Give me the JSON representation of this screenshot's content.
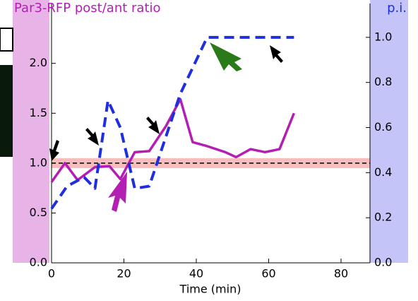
{
  "chart_data": {
    "type": "line",
    "title": "Par3-RFP post/ant ratio",
    "y2_label": "p.i.",
    "x_label": "Time (min)",
    "xlim": [
      0,
      88
    ],
    "xticks": [
      0,
      20,
      40,
      60,
      80
    ],
    "ylim": [
      0,
      2.6
    ],
    "yticks": [
      {
        "value": 0,
        "label": "0.0"
      },
      {
        "value": 0.5,
        "label": "0.5"
      },
      {
        "value": 1,
        "label": "1.0"
      },
      {
        "value": 1.5,
        "label": "1.5"
      },
      {
        "value": 2,
        "label": "2.0"
      }
    ],
    "y2lim": [
      0,
      1.15
    ],
    "y2ticks": [
      {
        "value": 0,
        "label": "0.0"
      },
      {
        "value": 0.2,
        "label": "0.2"
      },
      {
        "value": 0.4,
        "label": "0.4"
      },
      {
        "value": 0.6,
        "label": "0.6"
      },
      {
        "value": 0.8,
        "label": "0.8"
      },
      {
        "value": 1,
        "label": "1.0"
      }
    ],
    "reference_line": 1,
    "series": [
      {
        "color": "#b31fb3",
        "dashed": false,
        "x": [
          0,
          3.7,
          7.2,
          12,
          16,
          19,
          23,
          27,
          31.6,
          35.6,
          39,
          43,
          48,
          51,
          55,
          59,
          63,
          67
        ],
        "values": [
          0.81,
          1.0,
          0.83,
          0.96,
          0.97,
          0.84,
          1.11,
          1.12,
          1.37,
          1.64,
          1.21,
          1.17,
          1.11,
          1.06,
          1.14,
          1.11,
          1.14,
          1.5
        ]
      },
      {
        "color": "#1f2fe0",
        "dashed": true,
        "axis": "y2",
        "x": [
          0,
          4.3,
          9,
          12,
          15.6,
          19,
          23,
          27,
          35.6,
          43,
          67
        ],
        "values": [
          0.24,
          0.34,
          0.38,
          0.33,
          0.72,
          0.6,
          0.33,
          0.34,
          0.75,
          1.0,
          1.0
        ]
      }
    ]
  }
}
